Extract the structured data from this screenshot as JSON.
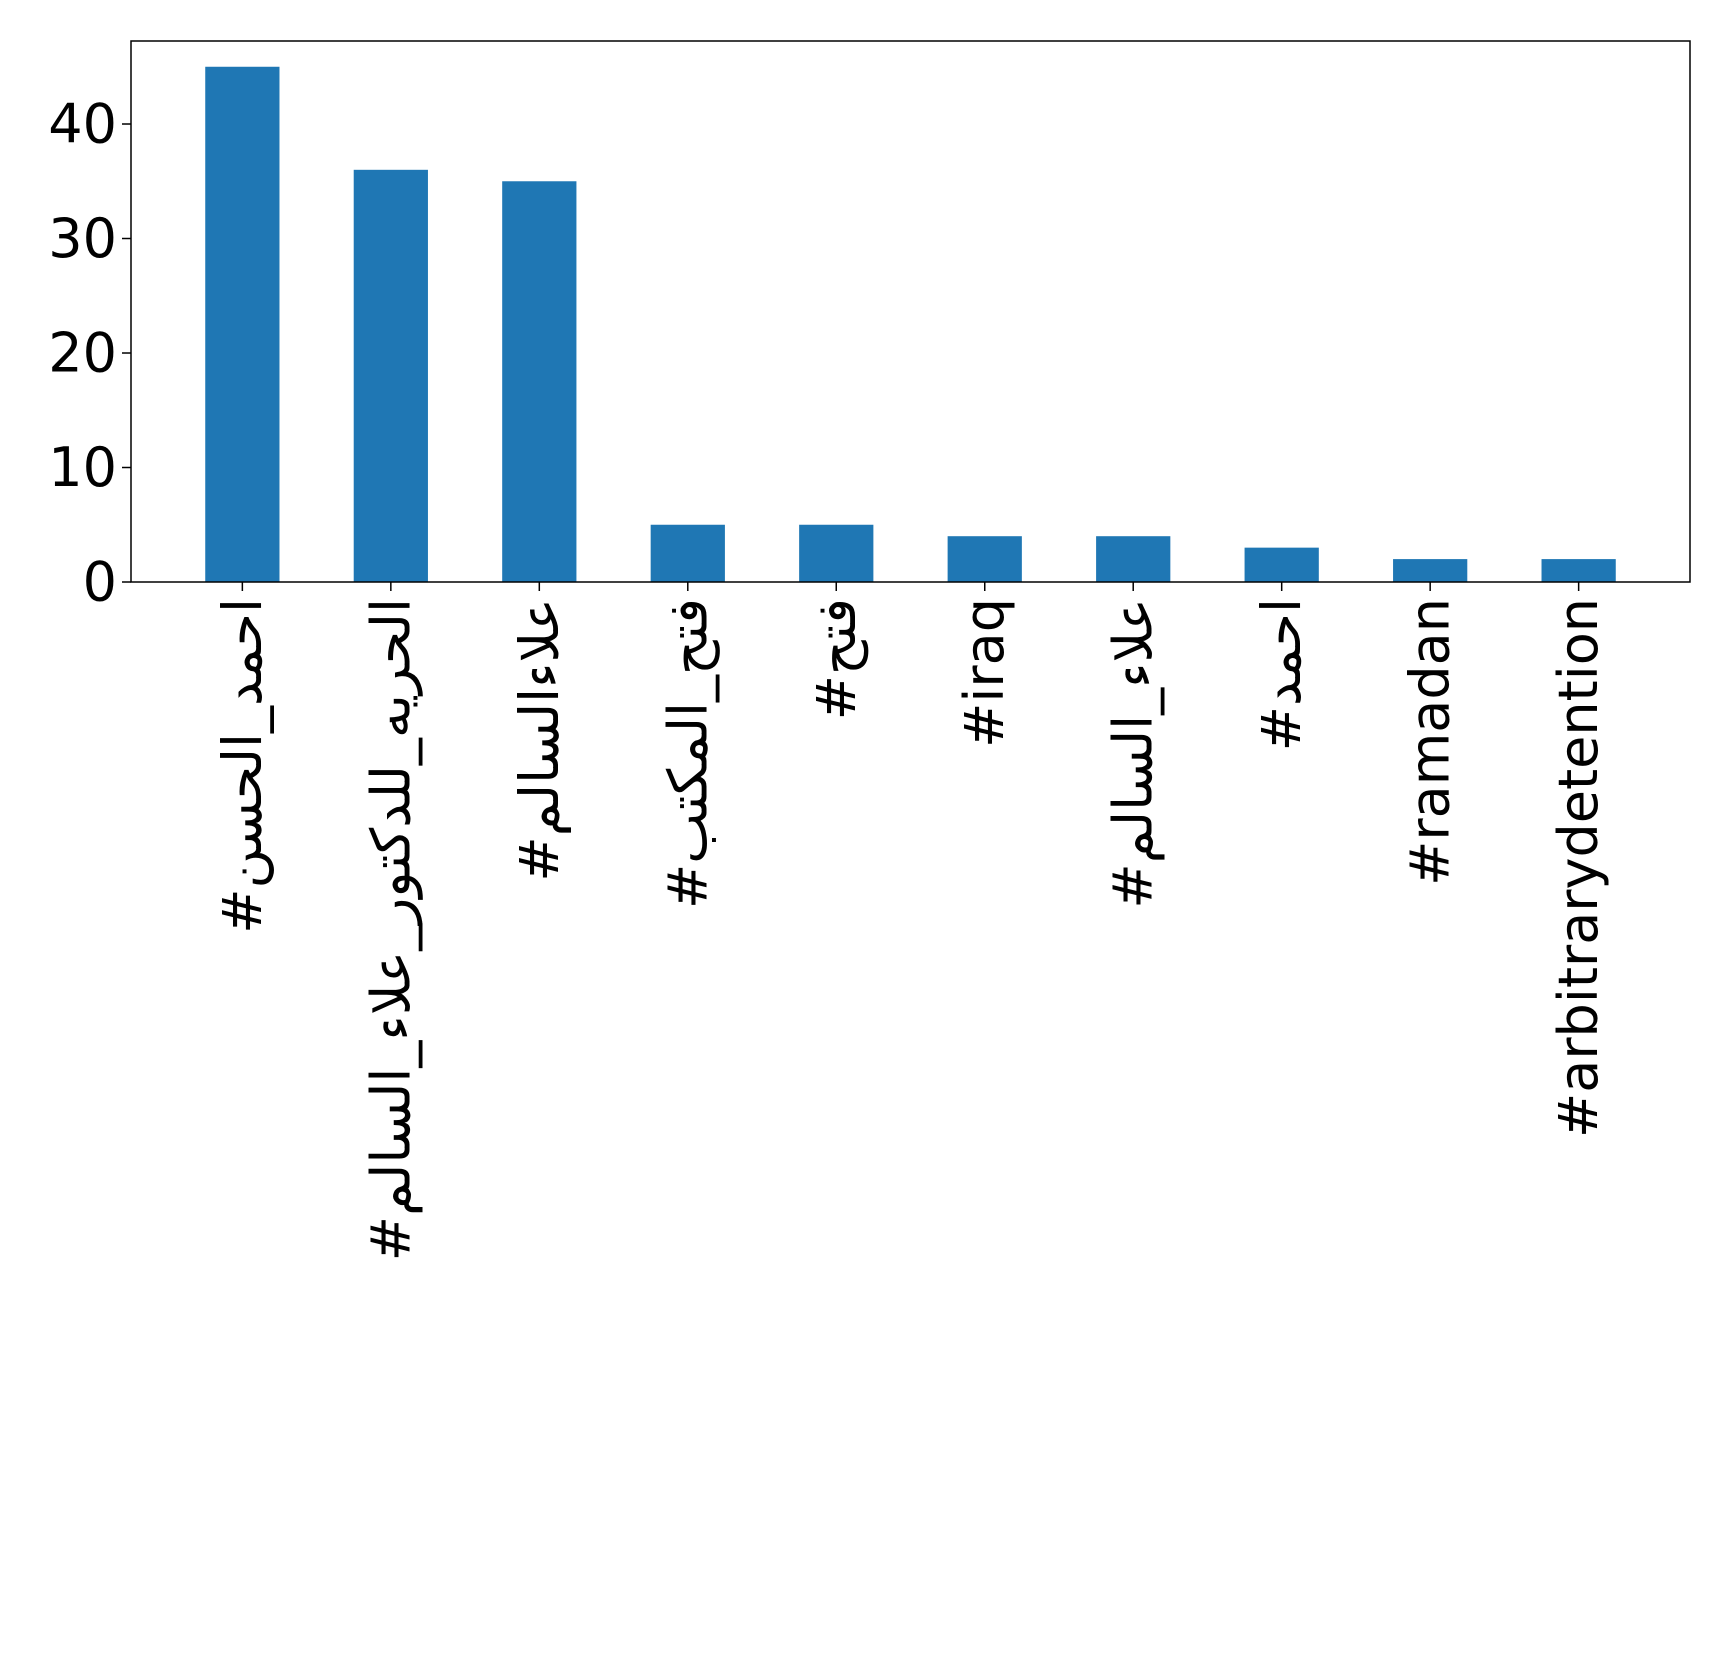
{
  "chart_data": {
    "type": "bar",
    "title": "",
    "xlabel": "",
    "ylabel": "",
    "categories": [
      "#احمد_الحسن",
      "#الحريه_للدكتور_علاء_السالم",
      "#علاءالسالم",
      "#فتح_المكتب",
      "#فتح",
      "#iraq",
      "#علاء_السالم",
      "#احمد",
      "#ramadan",
      "#arbitrarydetention"
    ],
    "values": [
      45,
      36,
      35,
      5,
      5,
      4,
      4,
      3,
      2,
      2
    ],
    "ylim": [
      0,
      47.25
    ],
    "yticks": [
      0,
      10,
      20,
      30,
      40
    ],
    "grid": false,
    "legend": "none",
    "colors": {
      "bar": "#1f77b4",
      "axis": "#000000",
      "text": "#000000",
      "background": "#ffffff"
    }
  }
}
